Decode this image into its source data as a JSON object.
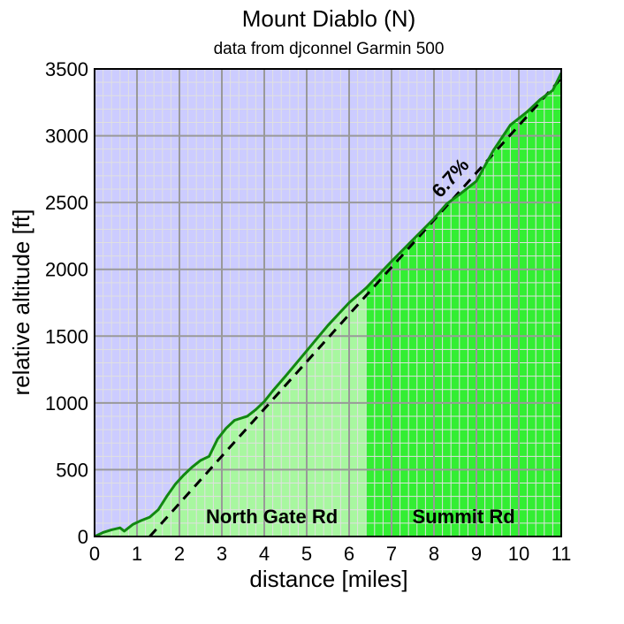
{
  "chart_data": {
    "type": "area",
    "title": "Mount Diablo (N)",
    "subtitle": "data from djconnel Garmin 500",
    "xlabel": "distance [miles]",
    "ylabel": "relative altitude [ft]",
    "xlim": [
      0,
      11
    ],
    "ylim": [
      0,
      3500
    ],
    "xticks": [
      "0",
      "1",
      "2",
      "3",
      "4",
      "5",
      "6",
      "7",
      "8",
      "9",
      "10",
      "11"
    ],
    "yticks": [
      "0",
      "500",
      "1000",
      "1500",
      "2000",
      "2500",
      "3000",
      "3500"
    ],
    "grid": true,
    "segments": [
      {
        "name": "North Gate Rd",
        "x_start": 0,
        "x_end": 6.4
      },
      {
        "name": "Summit Rd",
        "x_start": 6.4,
        "x_end": 11
      }
    ],
    "series": [
      {
        "name": "",
        "x": [
          0,
          0.2,
          0.4,
          0.6,
          0.7,
          0.9,
          1.1,
          1.3,
          1.5,
          1.7,
          1.9,
          2.1,
          2.3,
          2.5,
          2.7,
          2.9,
          3.1,
          3.3,
          3.5,
          3.6,
          3.8,
          4.0,
          4.2,
          4.5,
          5.0,
          5.5,
          6.0,
          6.4,
          7.0,
          7.5,
          8.0,
          8.3,
          8.6,
          9.0,
          9.4,
          9.8,
          10.2,
          10.5,
          10.8,
          11.0
        ],
        "y": [
          0,
          30,
          50,
          65,
          40,
          90,
          120,
          145,
          200,
          300,
          390,
          460,
          520,
          570,
          600,
          730,
          810,
          870,
          890,
          900,
          950,
          1010,
          1090,
          1200,
          1390,
          1580,
          1750,
          1860,
          2060,
          2220,
          2380,
          2490,
          2560,
          2660,
          2890,
          3080,
          3180,
          3270,
          3340,
          3470
        ]
      }
    ],
    "trend_line": {
      "label": "6.7%",
      "x_start": 1.3,
      "x_end": 11.0,
      "y_start": 0,
      "y_end": 3430
    },
    "colors": {
      "sky": "#ccccff",
      "north_gate_fill": "#a8f7a0",
      "summit_fill": "#33ee33",
      "profile_line": "#118811",
      "trend_line": "#000000",
      "grid_major": "#999999",
      "grid_minor": "#e0e0e0"
    }
  }
}
